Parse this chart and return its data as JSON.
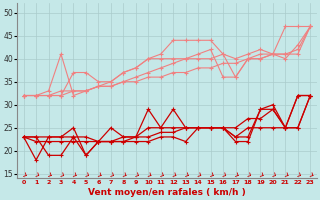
{
  "background_color": "#c5e8e8",
  "grid_color": "#aacccc",
  "xlabel": "Vent moyen/en rafales ( km/h )",
  "x_ticks": [
    0,
    1,
    2,
    3,
    4,
    5,
    6,
    7,
    8,
    9,
    10,
    11,
    12,
    13,
    14,
    15,
    16,
    17,
    18,
    19,
    20,
    21,
    22,
    23
  ],
  "ylim": [
    14,
    52
  ],
  "y_ticks": [
    15,
    20,
    25,
    30,
    35,
    40,
    45,
    50
  ],
  "series_light": [
    {
      "y": [
        32,
        32,
        32,
        33,
        33,
        33,
        34,
        34,
        35,
        35,
        36,
        36,
        37,
        37,
        38,
        38,
        39,
        39,
        40,
        40,
        41,
        41,
        42,
        47
      ]
    },
    {
      "y": [
        32,
        32,
        32,
        32,
        37,
        37,
        35,
        35,
        37,
        38,
        40,
        40,
        40,
        40,
        40,
        40,
        41,
        36,
        40,
        41,
        41,
        47,
        47,
        47
      ]
    },
    {
      "y": [
        32,
        32,
        33,
        41,
        32,
        33,
        34,
        35,
        37,
        38,
        40,
        41,
        44,
        44,
        44,
        44,
        41,
        40,
        41,
        42,
        41,
        40,
        43,
        47
      ]
    },
    {
      "y": [
        32,
        32,
        32,
        32,
        33,
        33,
        34,
        34,
        35,
        36,
        37,
        38,
        39,
        40,
        41,
        42,
        36,
        36,
        40,
        40,
        41,
        41,
        41,
        47
      ]
    }
  ],
  "series_dark": [
    {
      "y": [
        23,
        18,
        23,
        23,
        25,
        19,
        22,
        25,
        23,
        23,
        29,
        25,
        29,
        25,
        25,
        25,
        25,
        23,
        23,
        29,
        30,
        25,
        32,
        32
      ]
    },
    {
      "y": [
        23,
        23,
        23,
        23,
        23,
        23,
        22,
        22,
        23,
        23,
        25,
        25,
        25,
        25,
        25,
        25,
        25,
        25,
        27,
        27,
        29,
        25,
        25,
        32
      ]
    },
    {
      "y": [
        23,
        23,
        19,
        19,
        23,
        19,
        22,
        22,
        22,
        22,
        22,
        23,
        23,
        22,
        25,
        25,
        25,
        22,
        22,
        29,
        29,
        25,
        25,
        32
      ]
    },
    {
      "y": [
        23,
        22,
        22,
        22,
        22,
        22,
        22,
        22,
        22,
        23,
        23,
        24,
        24,
        25,
        25,
        25,
        25,
        23,
        25,
        25,
        25,
        25,
        32,
        32
      ]
    }
  ],
  "light_color": "#f08080",
  "dark_color": "#cc0000",
  "arrow_color": "#cc0000"
}
